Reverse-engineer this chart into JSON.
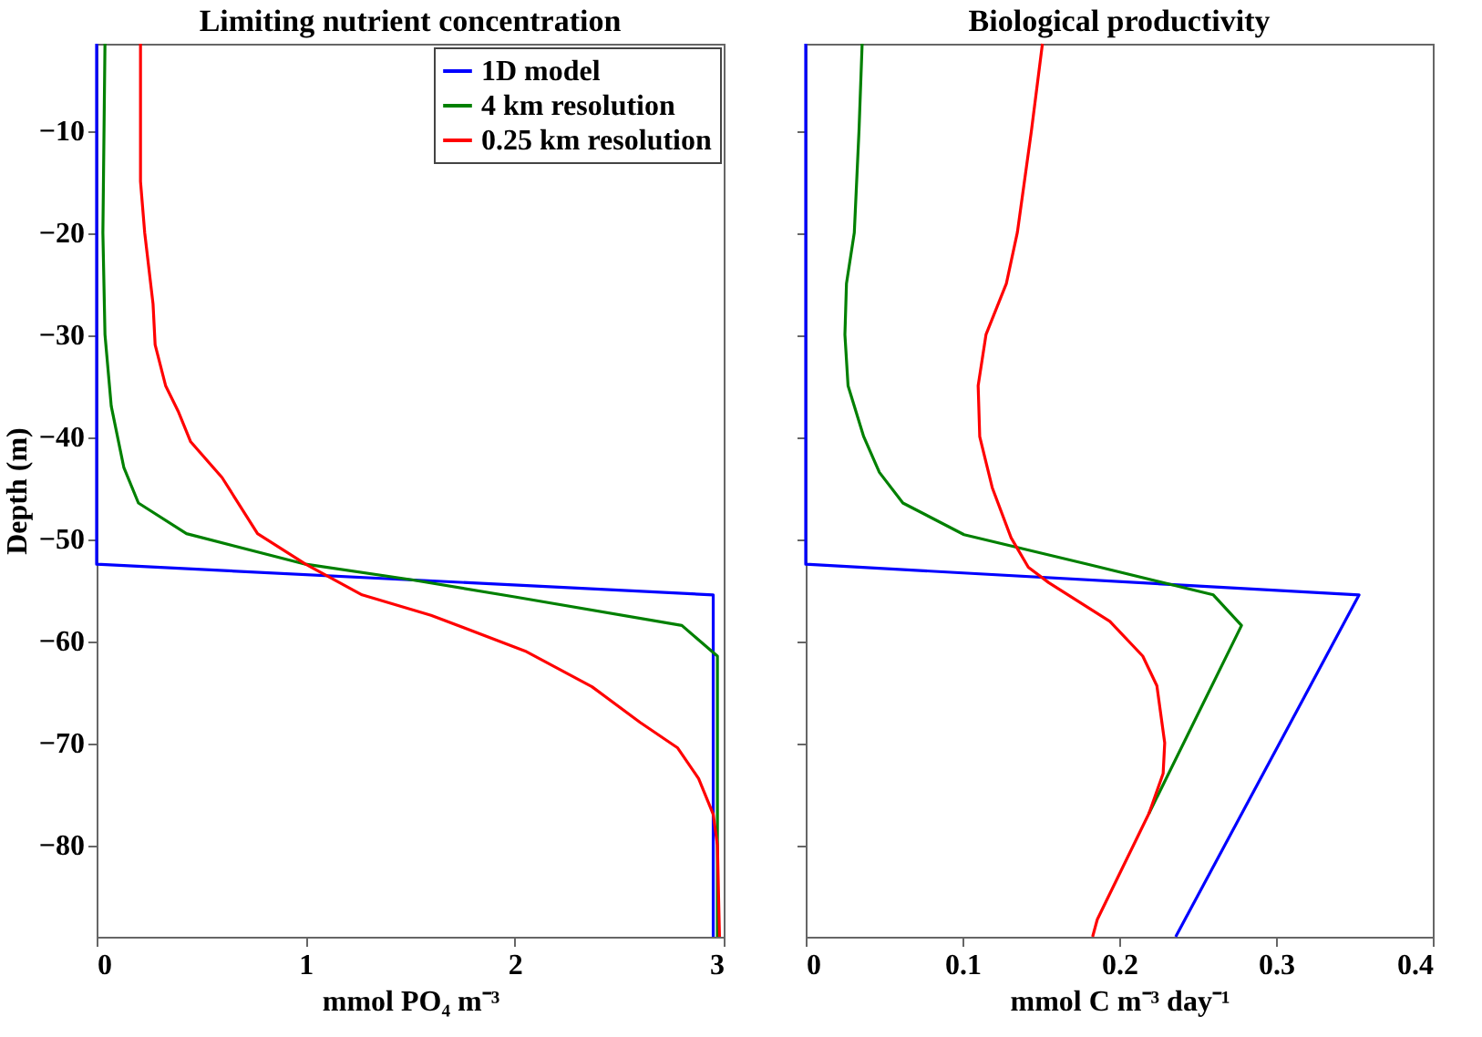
{
  "chart_data": [
    {
      "type": "line",
      "title": "Limiting nutrient concentration",
      "xlabel": "mmol PO₄ m⁻³",
      "ylabel": "Depth (m)",
      "xlim": [
        0,
        3
      ],
      "xticks": [
        0,
        1,
        2,
        3
      ],
      "ylim": [
        -89,
        -1.5
      ],
      "yticks": [
        -80,
        -70,
        -60,
        -50,
        -40,
        -30,
        -20,
        -10
      ],
      "legend": "top right",
      "grid": false,
      "series": [
        {
          "name": "1D model",
          "color": "#0000ff",
          "x": [
            0,
            0,
            2.95,
            2.95
          ],
          "values": [
            -1.5,
            -52.5,
            -55.5,
            -89
          ]
        },
        {
          "name": "4 km resolution",
          "color": "#008000",
          "x": [
            0.04,
            0.03,
            0.04,
            0.07,
            0.13,
            0.2,
            0.43,
            1.0,
            1.5,
            2.0,
            2.8,
            2.97,
            2.97
          ],
          "values": [
            -1.5,
            -20,
            -30,
            -37,
            -43,
            -46.5,
            -49.5,
            -52.5,
            -54,
            -55.7,
            -58.5,
            -61.5,
            -89
          ]
        },
        {
          "name": "0.25 km resolution",
          "color": "#ff0000",
          "x": [
            0.21,
            0.21,
            0.23,
            0.27,
            0.28,
            0.33,
            0.39,
            0.45,
            0.6,
            0.77,
            1.0,
            1.27,
            1.6,
            2.05,
            2.37,
            2.6,
            2.78,
            2.88,
            2.95,
            2.97,
            2.98
          ],
          "values": [
            -1.5,
            -15,
            -20,
            -27,
            -31,
            -35,
            -37.5,
            -40.5,
            -44,
            -49.5,
            -52.5,
            -55.5,
            -57.5,
            -61,
            -64.5,
            -68,
            -70.5,
            -73.5,
            -77,
            -80,
            -89
          ]
        }
      ]
    },
    {
      "type": "line",
      "title": "Biological productivity",
      "xlabel": "mmol C m⁻³ day⁻¹",
      "xlim": [
        0,
        0.4
      ],
      "xticks": [
        0,
        0.1,
        0.2,
        0.3,
        0.4
      ],
      "ylim": [
        -89,
        -1.5
      ],
      "yticks": [
        -80,
        -70,
        -60,
        -50,
        -40,
        -30,
        -20,
        -10
      ],
      "tick_labels": "x",
      "grid": false,
      "series": [
        {
          "color": "#0000ff",
          "x": [
            0,
            0,
            0.353,
            0.236
          ],
          "values": [
            -1.5,
            -52.5,
            -55.5,
            -89
          ]
        },
        {
          "color": "#008000",
          "x": [
            0.036,
            0.034,
            0.031,
            0.026,
            0.025,
            0.027,
            0.037,
            0.047,
            0.062,
            0.101,
            0.18,
            0.26,
            0.278,
            0.27,
            0.219
          ],
          "values": [
            -1.5,
            -10,
            -20,
            -25,
            -30,
            -35,
            -40,
            -43.5,
            -46.5,
            -49.6,
            -52.5,
            -55.5,
            -58.5,
            -61,
            -76.9
          ]
        },
        {
          "color": "#ff0000",
          "x": [
            0.151,
            0.144,
            0.135,
            0.128,
            0.115,
            0.11,
            0.111,
            0.119,
            0.131,
            0.142,
            0.155,
            0.194,
            0.215,
            0.224,
            0.229,
            0.228,
            0.219,
            0.186,
            0.183
          ],
          "values": [
            -1.5,
            -10,
            -20,
            -25,
            -30,
            -35,
            -40,
            -45,
            -49.9,
            -52.8,
            -54.3,
            -58.1,
            -61.5,
            -64.4,
            -70,
            -73,
            -76.9,
            -87.3,
            -89
          ]
        }
      ]
    }
  ]
}
